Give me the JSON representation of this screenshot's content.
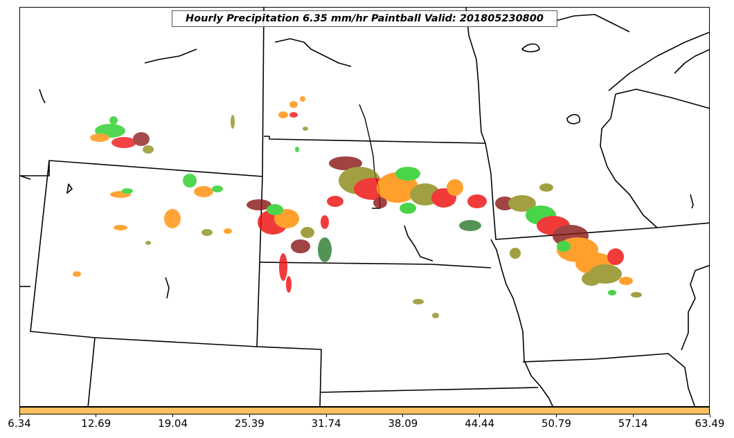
{
  "title": "Hourly Precipitation 6.35 mm/hr Paintball Valid: 201805230800",
  "colorbar": {
    "color": "#ffc060",
    "ticks": [
      "6.34",
      "12.69",
      "19.04",
      "25.39",
      "31.74",
      "38.09",
      "44.44",
      "50.79",
      "57.14",
      "63.49"
    ]
  },
  "palette": {
    "red": "#ee1111",
    "orange": "#ff8c00",
    "green": "#22cc22",
    "dark_green": "#2e7d32",
    "olive": "#8c8c1a",
    "dark_red": "#8b1a1a",
    "boundary": "#000000"
  }
}
